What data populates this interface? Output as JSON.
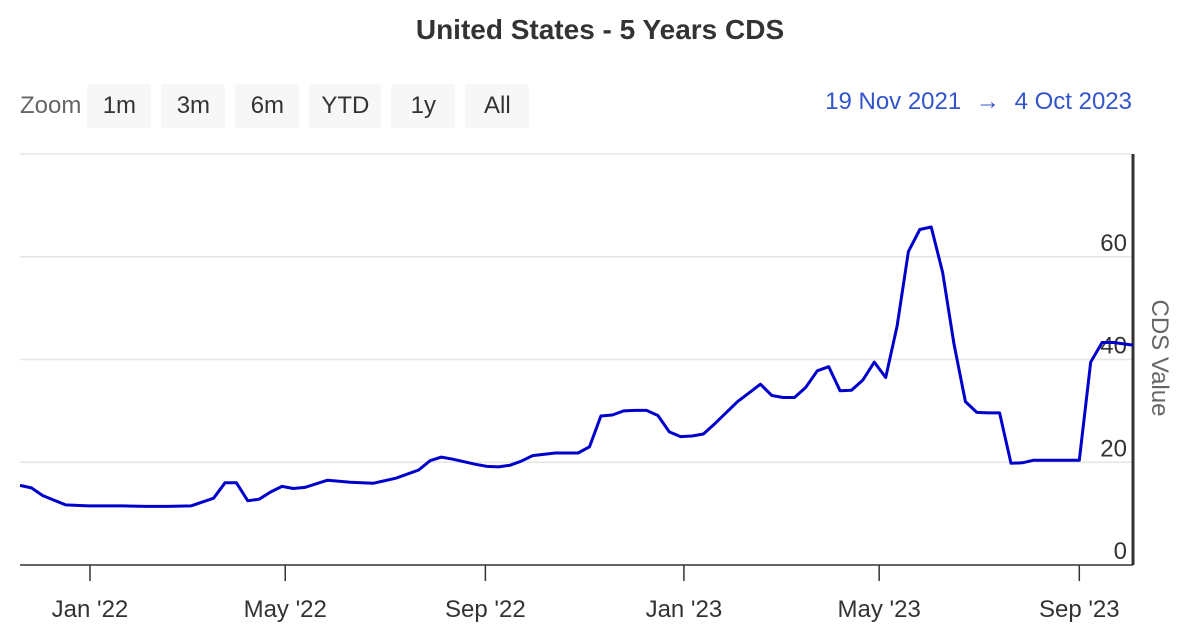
{
  "chart_data": {
    "type": "line",
    "title": "United States - 5 Years CDS",
    "ylabel": "CDS Value",
    "ylim": [
      0,
      80
    ],
    "yticks": [
      0,
      20,
      40,
      60
    ],
    "xlim": [
      "2021-11-19",
      "2023-10-04"
    ],
    "xticks": [
      {
        "date": "2022-01-01",
        "label": "Jan '22"
      },
      {
        "date": "2022-05-01",
        "label": "May '22"
      },
      {
        "date": "2022-09-01",
        "label": "Sep '22"
      },
      {
        "date": "2023-01-01",
        "label": "Jan '23"
      },
      {
        "date": "2023-05-01",
        "label": "May '23"
      },
      {
        "date": "2023-09-01",
        "label": "Sep '23"
      }
    ],
    "grid": true,
    "color": "#0000cc",
    "series": [
      {
        "x": [
          "2021-11-19",
          "2021-11-26",
          "2021-12-03",
          "2021-12-17",
          "2021-12-31",
          "2022-01-07",
          "2022-01-21",
          "2022-02-04",
          "2022-02-18",
          "2022-03-04",
          "2022-03-18",
          "2022-03-25",
          "2022-04-01",
          "2022-04-08",
          "2022-04-15",
          "2022-04-22",
          "2022-04-29",
          "2022-05-06",
          "2022-05-13",
          "2022-05-27",
          "2022-06-10",
          "2022-06-17",
          "2022-06-24",
          "2022-07-08",
          "2022-07-22",
          "2022-07-29",
          "2022-08-05",
          "2022-08-12",
          "2022-08-26",
          "2022-09-02",
          "2022-09-09",
          "2022-09-16",
          "2022-09-23",
          "2022-09-30",
          "2022-10-14",
          "2022-10-21",
          "2022-10-28",
          "2022-11-04",
          "2022-11-11",
          "2022-11-18",
          "2022-11-25",
          "2022-12-02",
          "2022-12-09",
          "2022-12-16",
          "2022-12-23",
          "2022-12-30",
          "2023-01-06",
          "2023-01-13",
          "2023-01-20",
          "2023-02-03",
          "2023-02-10",
          "2023-02-17",
          "2023-02-24",
          "2023-03-03",
          "2023-03-10",
          "2023-03-17",
          "2023-03-24",
          "2023-03-31",
          "2023-04-07",
          "2023-04-14",
          "2023-04-21",
          "2023-04-28",
          "2023-05-05",
          "2023-05-12",
          "2023-05-19",
          "2023-05-26",
          "2023-06-02",
          "2023-06-09",
          "2023-06-16",
          "2023-06-23",
          "2023-06-30",
          "2023-07-07",
          "2023-07-14",
          "2023-07-21",
          "2023-07-28",
          "2023-08-04",
          "2023-08-11",
          "2023-08-18",
          "2023-08-25",
          "2023-09-01",
          "2023-09-08",
          "2023-09-15",
          "2023-09-22",
          "2023-10-04"
        ],
        "values": [
          15.5,
          15,
          13.5,
          11.7,
          11.5,
          11.5,
          11.5,
          11.4,
          11.4,
          11.5,
          13,
          16,
          16,
          12.5,
          12.8,
          14.2,
          15.3,
          14.9,
          15.1,
          16.5,
          16.1,
          16,
          15.9,
          16.9,
          18.5,
          20.3,
          21,
          20.6,
          19.6,
          19.2,
          19.1,
          19.4,
          20.2,
          21.3,
          21.8,
          21.8,
          21.8,
          23,
          29,
          29.2,
          30,
          30.1,
          30.1,
          29.1,
          25.9,
          25,
          25.1,
          25.5,
          27.5,
          31.8,
          33.5,
          35.2,
          33,
          32.6,
          32.6,
          34.6,
          37.8,
          38.6,
          33.9,
          34,
          36,
          39.5,
          36.5,
          46.5,
          61,
          65.3,
          65.8,
          57,
          43,
          31.8,
          29.7,
          29.6,
          29.6,
          19.8,
          19.9,
          20.4,
          20.4,
          20.4,
          20.4,
          20.4,
          39.5,
          43.3,
          43.3,
          42.8
        ]
      }
    ]
  },
  "zoom": {
    "label": "Zoom",
    "buttons": [
      "1m",
      "3m",
      "6m",
      "YTD",
      "1y",
      "All"
    ]
  },
  "range": {
    "from": "19 Nov 2021",
    "arrow": "→",
    "to": "4 Oct 2023"
  }
}
